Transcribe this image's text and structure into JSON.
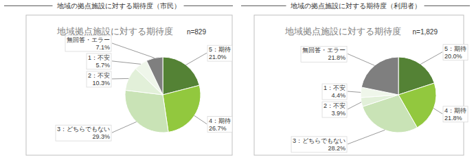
{
  "chart_data": [
    {
      "type": "pie",
      "heading": "地域の拠点施設に対する期待度（市民）",
      "title": "地域拠点施設に対する期待度",
      "annotation": "n=829",
      "categories": [
        "5：期待",
        "4：期待",
        "3：どちらでもない",
        "2：不安",
        "1：不安",
        "無回答・エラー"
      ],
      "values": [
        21.0,
        26.7,
        29.3,
        10.3,
        5.7,
        7.1
      ],
      "value_labels": [
        "21.0%",
        "26.7%",
        "29.3%",
        "10.3%",
        "5.7%",
        "7.1%"
      ],
      "colors": [
        "#548235",
        "#92c83e",
        "#c9e3b6",
        "#e2f0d9",
        "#eff6ea",
        "#7f7f7f"
      ],
      "data_labels": true
    },
    {
      "type": "pie",
      "heading": "地域の拠点施設に対する期待度（利用者）",
      "title": "地域拠点施設に対する期待度",
      "annotation": "n=1,829",
      "categories": [
        "5：期待",
        "4：期待",
        "3：どちらでもない",
        "2：不安",
        "1：不安",
        "無回答・エラー"
      ],
      "values": [
        20.0,
        21.8,
        28.2,
        3.9,
        4.4,
        21.8
      ],
      "value_labels": [
        "20.0%",
        "21.8%",
        "28.2%",
        "3.9%",
        "4.4%",
        "21.8%"
      ],
      "colors": [
        "#548235",
        "#92c83e",
        "#c9e3b6",
        "#e2f0d9",
        "#eff6ea",
        "#7f7f7f"
      ],
      "data_labels": true
    }
  ]
}
